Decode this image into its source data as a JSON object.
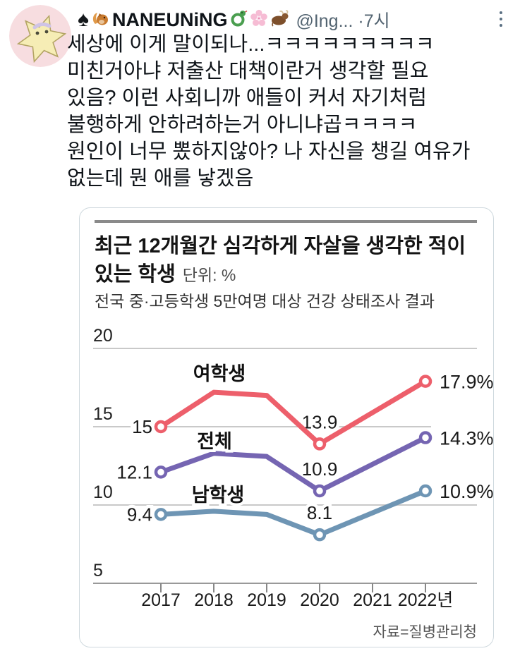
{
  "header": {
    "display_name": "NANEUNiNG",
    "name_icons_before": [
      "spade",
      "squirrel"
    ],
    "name_icons_after": [
      "snake",
      "cherry-blossom",
      "ox"
    ],
    "handle": "@Ing...",
    "separator": "·",
    "timestamp": "7시"
  },
  "tweet": {
    "lines": [
      "세상에 이게 말이되나...ㅋㅋㅋㅋㅋㅋㅋㅋㅋ",
      "미친거아냐 저출산 대책이란거 생각할 필요",
      "있음? 이런 사회니까 애들이 커서 자기처럼",
      "불행하게 안하려하는거 아니냐곱ㅋㅋㅋㅋ",
      "원인이 너무 뽔하지않아? 나 자신을 챙길 여유가",
      "없는데 뭔 애를 낳겠음"
    ]
  },
  "chart_card": {
    "title_line1": "최근 12개월간 심각하게 자살을 생각한 적이",
    "title_line2": "있는 학생",
    "unit_label": "단위: %",
    "subtitle": "전국 중·고등학생 5만여명 대상 건강 상태조사 결과",
    "source": "자료=질병관리청"
  },
  "chart_data": {
    "type": "line",
    "categories": [
      "2017",
      "2018",
      "2019",
      "2020",
      "2021",
      "2022년"
    ],
    "ylim": [
      5,
      20
    ],
    "yticks": [
      20,
      15,
      10,
      5
    ],
    "grid": true,
    "unit": "%",
    "marker_indices": [
      0,
      3,
      5
    ],
    "series": [
      {
        "key": "female-students",
        "name": "여학생",
        "color": "#ed5f6b",
        "values": [
          15.0,
          17.2,
          17.0,
          13.9,
          15.9,
          17.9
        ],
        "labels": {
          "start": "15",
          "mid": "13.9",
          "end": "17.9%"
        }
      },
      {
        "key": "all-students",
        "name": "전체",
        "color": "#7565b2",
        "values": [
          12.1,
          13.3,
          13.1,
          10.9,
          12.6,
          14.3
        ],
        "labels": {
          "start": "12.1",
          "mid": "10.9",
          "end": "14.3%"
        }
      },
      {
        "key": "male-students",
        "name": "남학생",
        "color": "#6e95b4",
        "values": [
          9.4,
          9.6,
          9.4,
          8.1,
          9.5,
          10.9
        ],
        "labels": {
          "start": "9.4",
          "mid": "8.1",
          "end": "10.9%"
        }
      }
    ]
  },
  "colors": {
    "text": "#0f1419",
    "secondary_text": "#536471",
    "grid": "#c9c9c9",
    "axis": "#999999",
    "card_border": "#cfd9de"
  }
}
